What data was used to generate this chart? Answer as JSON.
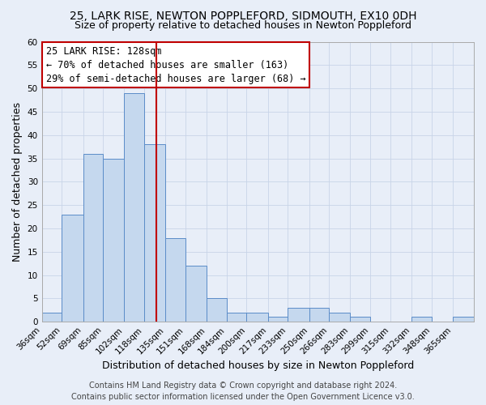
{
  "title": "25, LARK RISE, NEWTON POPPLEFORD, SIDMOUTH, EX10 0DH",
  "subtitle": "Size of property relative to detached houses in Newton Poppleford",
  "xlabel": "Distribution of detached houses by size in Newton Poppleford",
  "ylabel": "Number of detached properties",
  "bin_labels": [
    "36sqm",
    "52sqm",
    "69sqm",
    "85sqm",
    "102sqm",
    "118sqm",
    "135sqm",
    "151sqm",
    "168sqm",
    "184sqm",
    "200sqm",
    "217sqm",
    "233sqm",
    "250sqm",
    "266sqm",
    "283sqm",
    "299sqm",
    "315sqm",
    "332sqm",
    "348sqm",
    "365sqm"
  ],
  "bin_edges": [
    36,
    52,
    69,
    85,
    102,
    118,
    135,
    151,
    168,
    184,
    200,
    217,
    233,
    250,
    266,
    283,
    299,
    315,
    332,
    348,
    365
  ],
  "counts": [
    2,
    23,
    36,
    35,
    49,
    38,
    18,
    12,
    5,
    2,
    2,
    1,
    3,
    3,
    2,
    1,
    0,
    0,
    1,
    0,
    1
  ],
  "bar_color": "#c5d8ee",
  "bar_edge_color": "#5b8cc8",
  "grid_color": "#c8d4e8",
  "background_color": "#e8eef8",
  "vline_x": 128,
  "vline_color": "#c00000",
  "ylim": [
    0,
    60
  ],
  "yticks": [
    0,
    5,
    10,
    15,
    20,
    25,
    30,
    35,
    40,
    45,
    50,
    55,
    60
  ],
  "annotation_title": "25 LARK RISE: 128sqm",
  "annotation_line1": "← 70% of detached houses are smaller (163)",
  "annotation_line2": "29% of semi-detached houses are larger (68) →",
  "annotation_box_color": "#ffffff",
  "annotation_box_edge_color": "#c00000",
  "footer_line1": "Contains HM Land Registry data © Crown copyright and database right 2024.",
  "footer_line2": "Contains public sector information licensed under the Open Government Licence v3.0.",
  "title_fontsize": 10,
  "subtitle_fontsize": 9,
  "axis_label_fontsize": 9,
  "tick_fontsize": 7.5,
  "annotation_fontsize": 8.5,
  "footer_fontsize": 7
}
